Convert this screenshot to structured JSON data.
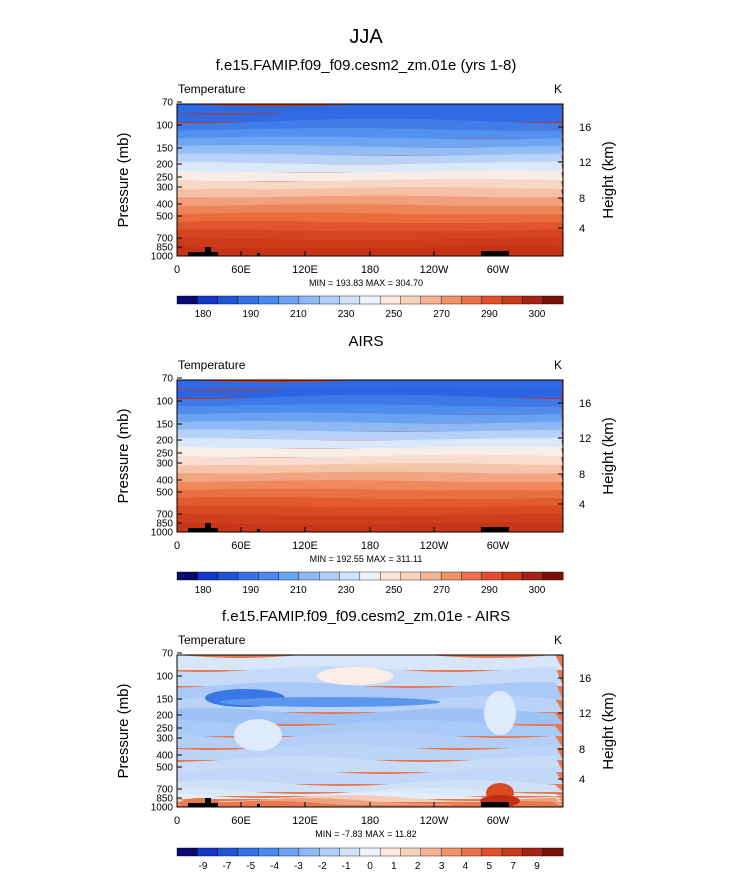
{
  "figure": {
    "title": "JJA"
  },
  "chart_data": [
    {
      "type": "heatmap",
      "title": "f.e15.FAMIP.f09_f09.cesm2_zm.01e (yrs 1-8)",
      "variable": "Temperature",
      "units": "K",
      "ylabel": "Pressure (mb)",
      "ylabel_right": "Height (km)",
      "pressure_ticks": [
        "70",
        "100",
        "150",
        "200",
        "250",
        "300",
        "400",
        "500",
        "700",
        "850",
        "1000"
      ],
      "height_ticks": [
        "16",
        "12",
        "8",
        "4"
      ],
      "lon_ticks": [
        "0",
        "60E",
        "120E",
        "180",
        "120W",
        "60W"
      ],
      "stats": "MIN = 193.83  MAX = 304.70",
      "colorbar_labels": [
        "180",
        "190",
        "210",
        "230",
        "250",
        "270",
        "290",
        "300"
      ],
      "colorbar_colors": [
        "#0a0a6e",
        "#1437c8",
        "#2155d4",
        "#3572e6",
        "#4a89ee",
        "#6aa3f2",
        "#8db9f5",
        "#b0cff8",
        "#d2e4fa",
        "#eef4fb",
        "#fbe8dd",
        "#f8d2bd",
        "#f4b394",
        "#ef9268",
        "#ea7048",
        "#e0502d",
        "#c83a1b",
        "#a42513",
        "#7a100a"
      ],
      "band_colors": [
        "#2e6ae4",
        "#2f6be4",
        "#3f7ee9",
        "#5391ee",
        "#6ea5f2",
        "#93bcf5",
        "#b9d3f8",
        "#dde9fa",
        "#f7ede7",
        "#f7d8c7",
        "#f5c0a3",
        "#f2a07c",
        "#ee8559",
        "#e96b3e",
        "#e0552d",
        "#d5441f",
        "#cc3a19",
        "#c43316"
      ]
    },
    {
      "type": "heatmap",
      "title": "AIRS",
      "variable": "Temperature",
      "units": "K",
      "ylabel": "Pressure (mb)",
      "ylabel_right": "Height (km)",
      "pressure_ticks": [
        "70",
        "100",
        "150",
        "200",
        "250",
        "300",
        "400",
        "500",
        "700",
        "850",
        "1000"
      ],
      "height_ticks": [
        "16",
        "12",
        "8",
        "4"
      ],
      "lon_ticks": [
        "0",
        "60E",
        "120E",
        "180",
        "120W",
        "60W"
      ],
      "stats": "MIN = 192.55  MAX = 311.11",
      "colorbar_labels": [
        "180",
        "190",
        "210",
        "230",
        "250",
        "270",
        "290",
        "300"
      ],
      "colorbar_colors": [
        "#0a0a6e",
        "#1437c8",
        "#2155d4",
        "#3572e6",
        "#4a89ee",
        "#6aa3f2",
        "#8db9f5",
        "#b0cff8",
        "#d2e4fa",
        "#eef4fb",
        "#fbe8dd",
        "#f8d2bd",
        "#f4b394",
        "#ef9268",
        "#ea7048",
        "#e0502d",
        "#c83a1b",
        "#a42513",
        "#7a100a"
      ],
      "band_colors": [
        "#3069e4",
        "#2c65e2",
        "#3b7ae8",
        "#4f8ded",
        "#6aa2f2",
        "#8fb9f5",
        "#b6d1f8",
        "#dbe8fa",
        "#f8eee8",
        "#f8dccd",
        "#f6c4a8",
        "#f3a582",
        "#ef895d",
        "#ea6f42",
        "#e25a30",
        "#d84a22",
        "#cf3e1b",
        "#c63517"
      ]
    },
    {
      "type": "heatmap",
      "title": "f.e15.FAMIP.f09_f09.cesm2_zm.01e - AIRS",
      "variable": "Temperature",
      "units": "K",
      "ylabel": "Pressure (mb)",
      "ylabel_right": "Height (km)",
      "pressure_ticks": [
        "70",
        "100",
        "150",
        "200",
        "250",
        "300",
        "400",
        "500",
        "700",
        "850",
        "1000"
      ],
      "height_ticks": [
        "16",
        "12",
        "8",
        "4"
      ],
      "lon_ticks": [
        "0",
        "60E",
        "120E",
        "180",
        "120W",
        "60W"
      ],
      "stats": "MIN = -7.83  MAX = 11.82",
      "colorbar_labels": [
        "-9",
        "-7",
        "-5",
        "-4",
        "-3",
        "-2",
        "-1",
        "0",
        "1",
        "2",
        "3",
        "4",
        "5",
        "7",
        "9"
      ],
      "colorbar_colors": [
        "#0a0a6e",
        "#1437c8",
        "#2155d4",
        "#3572e6",
        "#4a89ee",
        "#6aa3f2",
        "#8db9f5",
        "#b0cff8",
        "#d2e4fa",
        "#eef4fb",
        "#fbe8dd",
        "#f8d2bd",
        "#f4b394",
        "#ef9268",
        "#ea7048",
        "#e0502d",
        "#c83a1b",
        "#a42513",
        "#7a100a"
      ],
      "band_colors": [
        "#d8e6fa",
        "#c6dbf9",
        "#aac9f6",
        "#b8d2f8",
        "#9fc2f6",
        "#a9c9f7",
        "#b4cff7",
        "#bcd4f8",
        "#c8dcf9",
        "#c1d8f8",
        "#cfe1f9",
        "#d9e8fa",
        "#e2eefb",
        "#f4cdb8",
        "#f0a27e",
        "#e9774f"
      ]
    }
  ]
}
